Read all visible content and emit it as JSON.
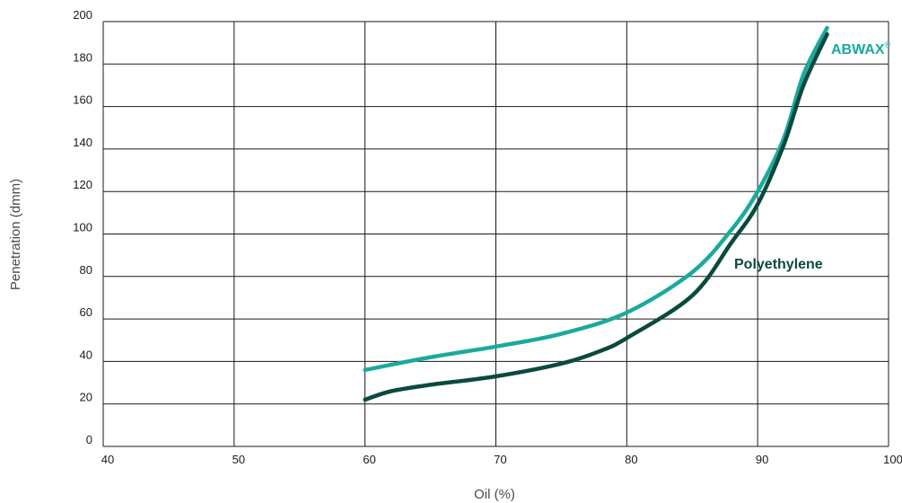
{
  "chart_data": {
    "type": "line",
    "title": "",
    "xlabel": "Oil (%)",
    "ylabel": "Penetration (dmm)",
    "xlim": [
      40,
      100
    ],
    "ylim": [
      0,
      200
    ],
    "xticks": [
      40,
      50,
      60,
      70,
      80,
      90,
      100
    ],
    "yticks": [
      0,
      20,
      40,
      60,
      80,
      100,
      120,
      140,
      160,
      180,
      200
    ],
    "grid": true,
    "series": [
      {
        "name": "ABWAX",
        "superscript": "®",
        "color": "#1aaa9d",
        "x": [
          60,
          65,
          70,
          75,
          80,
          85,
          88,
          90,
          92,
          93.5,
          95.3
        ],
        "y": [
          36,
          42,
          47,
          53,
          63,
          82,
          102,
          120,
          145,
          175,
          197
        ]
      },
      {
        "name": "Polyethylene",
        "color": "#0a4a3e",
        "x": [
          60,
          62,
          65,
          70,
          75,
          78,
          80,
          85,
          88,
          90,
          92,
          93.5,
          95.3
        ],
        "y": [
          22,
          26,
          29,
          33,
          39,
          45,
          51,
          71,
          96,
          114,
          142,
          170,
          194
        ]
      }
    ]
  }
}
